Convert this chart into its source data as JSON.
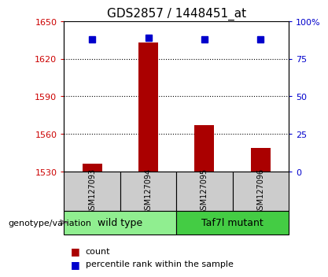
{
  "title": "GDS2857 / 1448451_at",
  "samples": [
    "GSM127093",
    "GSM127094",
    "GSM127095",
    "GSM127096"
  ],
  "counts": [
    1536,
    1633,
    1567,
    1549
  ],
  "percentiles": [
    88,
    89,
    88,
    88
  ],
  "ylim_left": [
    1530,
    1650
  ],
  "ylim_right": [
    0,
    100
  ],
  "yticks_left": [
    1530,
    1560,
    1590,
    1620,
    1650
  ],
  "yticks_right": [
    0,
    25,
    50,
    75,
    100
  ],
  "ytick_labels_right": [
    "0",
    "25",
    "50",
    "75",
    "100%"
  ],
  "groups": [
    {
      "label": "wild type",
      "samples": [
        0,
        1
      ],
      "color": "#90ee90"
    },
    {
      "label": "Taf7l mutant",
      "samples": [
        2,
        3
      ],
      "color": "#44cc44"
    }
  ],
  "bar_color": "#aa0000",
  "square_color": "#0000cc",
  "bg_color": "#ffffff",
  "plot_bg": "#ffffff",
  "label_color_left": "#cc0000",
  "label_color_right": "#0000cc",
  "xlabel_label": "genotype/variation",
  "legend_count_label": "count",
  "legend_pct_label": "percentile rank within the sample",
  "sample_box_color": "#cccccc",
  "group_label_fontsize": 9,
  "title_fontsize": 11
}
